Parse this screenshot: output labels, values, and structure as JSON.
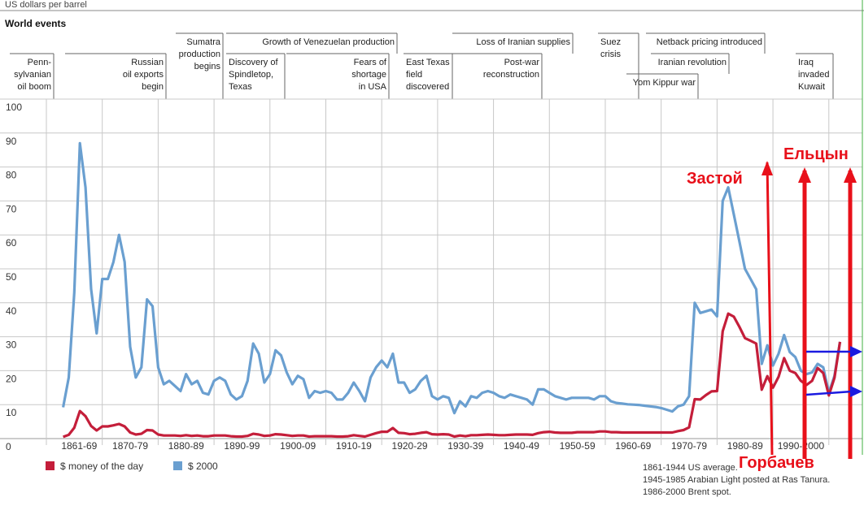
{
  "units_label": "US dollars per barrel",
  "section_title": "World events",
  "events": [
    {
      "lines": [
        "Penn-",
        "sylvanian",
        "oil boom"
      ]
    },
    {
      "lines": [
        "Russian",
        "oil exports",
        "begin"
      ]
    },
    {
      "lines": [
        "Sumatra",
        "production",
        "begins"
      ]
    },
    {
      "lines": [
        "Discovery of",
        "Spindletop,",
        "Texas"
      ]
    },
    {
      "lines": [
        "Growth of Venezuelan production"
      ]
    },
    {
      "lines": [
        "Fears of",
        "shortage",
        "in USA"
      ]
    },
    {
      "lines": [
        "East Texas",
        "field",
        "discovered"
      ]
    },
    {
      "lines": [
        "Loss of Iranian supplies"
      ]
    },
    {
      "lines": [
        "Post-war",
        "reconstruction"
      ]
    },
    {
      "lines": [
        "Suez",
        "crisis"
      ]
    },
    {
      "lines": [
        "Netback pricing introduced"
      ]
    },
    {
      "lines": [
        "Iranian revolution"
      ]
    },
    {
      "lines": [
        "Yom Kippur war"
      ]
    },
    {
      "lines": [
        "Iraq",
        "invaded",
        "Kuwait"
      ]
    }
  ],
  "chart_data": {
    "type": "line",
    "ylim": [
      0,
      100
    ],
    "xlim": [
      1858,
      2004
    ],
    "yticks": [
      "0",
      "10",
      "20",
      "30",
      "40",
      "50",
      "60",
      "70",
      "80",
      "90",
      "100"
    ],
    "categories": [
      "1861-69",
      "1870-79",
      "1880-89",
      "1890-99",
      "1900-09",
      "1910-19",
      "1920-29",
      "1930-39",
      "1940-49",
      "1950-59",
      "1960-69",
      "1970-79",
      "1980-89",
      "1990-2000"
    ],
    "x": [
      1861,
      1862,
      1863,
      1864,
      1865,
      1866,
      1867,
      1868,
      1869,
      1870,
      1871,
      1872,
      1873,
      1874,
      1875,
      1876,
      1877,
      1878,
      1879,
      1880,
      1881,
      1882,
      1883,
      1884,
      1885,
      1886,
      1887,
      1888,
      1889,
      1890,
      1891,
      1892,
      1893,
      1894,
      1895,
      1896,
      1897,
      1898,
      1899,
      1900,
      1901,
      1902,
      1903,
      1904,
      1905,
      1906,
      1907,
      1908,
      1909,
      1910,
      1911,
      1912,
      1913,
      1914,
      1915,
      1916,
      1917,
      1918,
      1919,
      1920,
      1921,
      1922,
      1923,
      1924,
      1925,
      1926,
      1927,
      1928,
      1929,
      1930,
      1931,
      1932,
      1933,
      1934,
      1935,
      1936,
      1937,
      1938,
      1939,
      1940,
      1941,
      1942,
      1943,
      1944,
      1945,
      1946,
      1947,
      1948,
      1949,
      1950,
      1951,
      1952,
      1953,
      1954,
      1955,
      1956,
      1957,
      1958,
      1959,
      1960,
      1961,
      1962,
      1963,
      1964,
      1965,
      1966,
      1967,
      1968,
      1969,
      1970,
      1971,
      1972,
      1973,
      1974,
      1975,
      1976,
      1977,
      1978,
      1979,
      1980,
      1981,
      1982,
      1983,
      1984,
      1985,
      1986,
      1987,
      1988,
      1989,
      1990,
      1991,
      1992,
      1993,
      1994,
      1995,
      1996,
      1997,
      1998,
      1999,
      2000
    ],
    "series": [
      {
        "name": "$ money of the day",
        "color": "#c41e3a",
        "values": [
          0.5,
          1.1,
          3.2,
          8.1,
          6.6,
          3.7,
          2.4,
          3.6,
          3.6,
          3.9,
          4.3,
          3.6,
          1.8,
          1.2,
          1.4,
          2.5,
          2.4,
          1.2,
          0.9,
          0.9,
          0.9,
          0.8,
          1.0,
          0.8,
          0.9,
          0.7,
          0.7,
          0.9,
          0.9,
          0.9,
          0.7,
          0.6,
          0.6,
          0.8,
          1.4,
          1.2,
          0.8,
          0.9,
          1.3,
          1.2,
          1.0,
          0.8,
          0.9,
          0.9,
          0.6,
          0.7,
          0.7,
          0.7,
          0.7,
          0.6,
          0.6,
          0.7,
          1.0,
          0.8,
          0.6,
          1.1,
          1.6,
          2.0,
          2.0,
          3.1,
          1.7,
          1.6,
          1.3,
          1.4,
          1.7,
          1.9,
          1.3,
          1.2,
          1.3,
          1.2,
          0.6,
          0.9,
          0.7,
          1.0,
          1.0,
          1.1,
          1.2,
          1.1,
          1.0,
          1.0,
          1.1,
          1.2,
          1.2,
          1.2,
          1.1,
          1.6,
          1.9,
          2.0,
          1.8,
          1.7,
          1.7,
          1.7,
          1.9,
          1.9,
          1.9,
          1.9,
          2.1,
          2.1,
          1.9,
          1.9,
          1.8,
          1.8,
          1.8,
          1.8,
          1.8,
          1.8,
          1.8,
          1.8,
          1.8,
          1.8,
          2.2,
          2.5,
          3.3,
          11.6,
          11.5,
          12.8,
          13.9,
          14.0,
          31.6,
          36.8,
          35.9,
          32.9,
          29.6,
          28.8,
          28.0,
          14.4,
          18.4,
          15.0,
          18.2,
          23.7,
          20.0,
          19.3,
          17.0,
          15.8,
          17.0,
          20.8,
          19.3,
          12.7,
          17.9,
          28.5
        ]
      },
      {
        "name": "$ 2000",
        "color": "#6a9fd0",
        "values": [
          9.2,
          18.0,
          43.0,
          87.0,
          74.0,
          44.0,
          31.0,
          47.0,
          47.0,
          52.0,
          60.0,
          52.0,
          27.0,
          18.0,
          21.0,
          41.0,
          39.0,
          21.0,
          16.0,
          17.0,
          15.5,
          14.0,
          19.0,
          16.0,
          17.0,
          13.5,
          13.0,
          17.0,
          18.0,
          17.0,
          13.0,
          11.5,
          12.5,
          17.0,
          28.0,
          25.0,
          16.5,
          19.0,
          26.0,
          24.5,
          19.5,
          16.0,
          18.5,
          17.5,
          12.0,
          14.0,
          13.5,
          14.0,
          13.5,
          11.5,
          11.5,
          13.5,
          16.5,
          14.0,
          11.0,
          18.0,
          21.0,
          23.0,
          21.0,
          25.0,
          16.5,
          16.5,
          13.5,
          14.5,
          17.0,
          18.5,
          12.5,
          11.5,
          12.5,
          12.0,
          7.5,
          11.0,
          9.5,
          12.5,
          12.0,
          13.5,
          14.0,
          13.5,
          12.5,
          12.0,
          13.0,
          12.5,
          12.0,
          11.5,
          10.0,
          14.5,
          14.5,
          13.5,
          12.5,
          12.0,
          11.5,
          12.0,
          12.0,
          12.0,
          12.0,
          11.5,
          12.5,
          12.5,
          11.0,
          10.5,
          10.3,
          10.1,
          10.0,
          9.9,
          9.7,
          9.5,
          9.3,
          9.0,
          8.5,
          8.0,
          9.5,
          10.0,
          12.5,
          40.0,
          37.0,
          37.5,
          38.0,
          36.0,
          70.0,
          74.0,
          66.0,
          58.0,
          50.0,
          47.0,
          44.0,
          22.0,
          27.5,
          21.5,
          25.0,
          30.5,
          25.5,
          24.0,
          20.0,
          19.0,
          19.5,
          22.0,
          21.0,
          13.5,
          18.5,
          28.5
        ]
      }
    ]
  },
  "legend_items": [
    {
      "label": "$ money of the day",
      "color": "#c41e3a"
    },
    {
      "label": "$ 2000",
      "color": "#6a9fd0"
    }
  ],
  "source_notes": [
    "1861-1944 US average.",
    "1945-1985 Arabian Light posted at Ras Tanura.",
    "1986-2000 Brent spot."
  ],
  "annotations": {
    "zastoy": "Застой",
    "yeltsin": "Ельцын",
    "gorbachev": "Горбачев",
    "color": "#e8101a",
    "arrow_color": "#1a1ae0"
  }
}
